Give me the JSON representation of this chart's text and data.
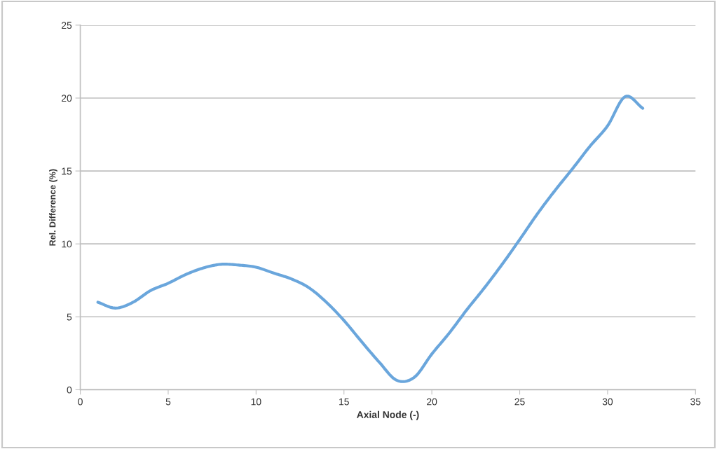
{
  "chart_data": {
    "type": "line",
    "xlabel": "Axial Node (-)",
    "ylabel": "Rel. Difference (%)",
    "x": [
      1,
      2,
      3,
      4,
      5,
      6,
      7,
      8,
      9,
      10,
      11,
      12,
      13,
      14,
      15,
      16,
      17,
      18,
      19,
      20,
      21,
      22,
      23,
      24,
      25,
      26,
      27,
      28,
      29,
      30,
      31,
      32
    ],
    "series": [
      {
        "color": "#6aa6dc",
        "values": [
          6.0,
          5.6,
          6.0,
          6.8,
          7.3,
          7.9,
          8.35,
          8.6,
          8.55,
          8.4,
          8.0,
          7.6,
          7.0,
          6.0,
          4.75,
          3.3,
          1.9,
          0.65,
          0.85,
          2.45,
          3.9,
          5.5,
          7.0,
          8.6,
          10.3,
          12.05,
          13.65,
          15.15,
          16.7,
          18.1,
          20.1,
          19.3
        ]
      }
    ],
    "xlim": [
      0,
      35
    ],
    "ylim": [
      0,
      25
    ],
    "xticks": [
      0,
      5,
      10,
      15,
      20,
      25,
      30,
      35
    ],
    "yticks": [
      0,
      5,
      10,
      15,
      20,
      25
    ],
    "grid": "y",
    "legend": false,
    "marker": "none",
    "line_style": "solid"
  }
}
